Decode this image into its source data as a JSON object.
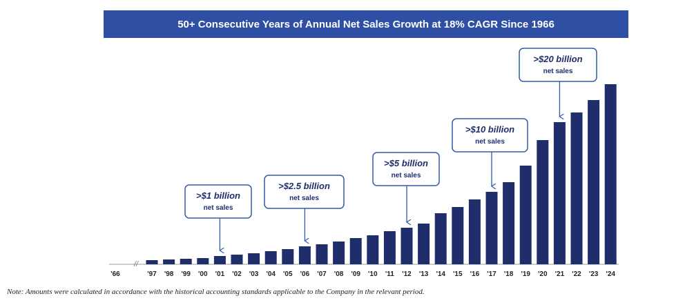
{
  "chart_data": {
    "type": "bar",
    "title": "50+ Consecutive Years of Annual Net Sales Growth at 18% CAGR Since 1966",
    "categories": [
      "'66",
      "'97",
      "'98",
      "'99",
      "'00",
      "'01",
      "'02",
      "'03",
      "'04",
      "'05",
      "'06",
      "'07",
      "'08",
      "'09",
      "'10",
      "'11",
      "'12",
      "'13",
      "'14",
      "'15",
      "'16",
      "'17",
      "'18",
      "'19",
      "'20",
      "'21",
      "'22",
      "'23",
      "'24"
    ],
    "values": [
      0,
      0.6,
      0.7,
      0.8,
      0.9,
      1.2,
      1.4,
      1.6,
      1.9,
      2.2,
      2.6,
      2.9,
      3.3,
      3.8,
      4.2,
      4.8,
      5.3,
      5.9,
      7.4,
      8.3,
      9.4,
      10.5,
      11.9,
      14.3,
      18.0,
      20.6,
      22.0,
      23.8,
      26.1
    ],
    "color": "#1f2d6b",
    "annotations": [
      {
        "text": ">$1 billion",
        "subtext": "net sales"
      },
      {
        "text": ">$2.5 billion",
        "subtext": "net sales"
      },
      {
        "text": ">$5 billion",
        "subtext": "net sales"
      },
      {
        "text": ">$10 billion",
        "subtext": "net sales"
      },
      {
        "text": ">$20 billion",
        "subtext": "net sales"
      }
    ],
    "note": "Note: Amounts were calculated in accordance with the historical accounting standards applicable to the Company in the relevant period."
  }
}
